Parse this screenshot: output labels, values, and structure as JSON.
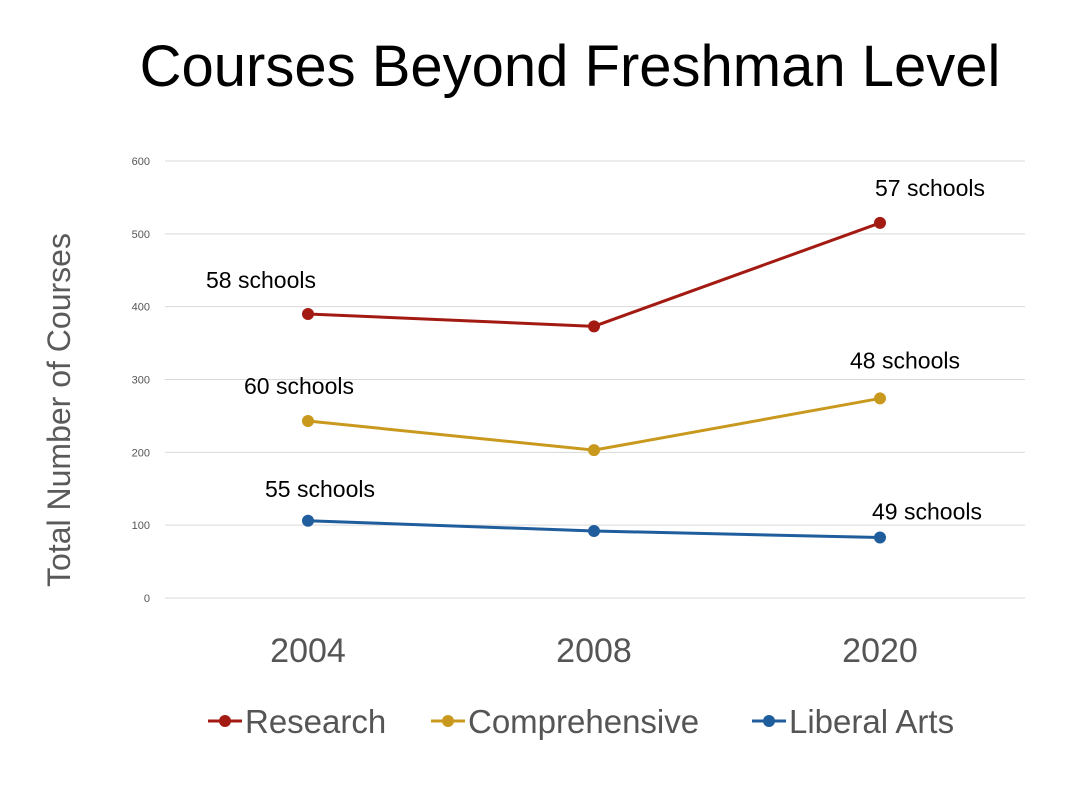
{
  "chart_data": {
    "type": "line",
    "title": "Courses Beyond Freshman Level",
    "xlabel": "",
    "ylabel": "Total Number of Courses",
    "categories": [
      "2004",
      "2008",
      "2020"
    ],
    "ylim": [
      0,
      600
    ],
    "yticks": [
      "0",
      "100",
      "200",
      "300",
      "400",
      "500",
      "600"
    ],
    "grid": true,
    "legend_position": "bottom",
    "series": [
      {
        "name": "Research",
        "color": "#a21a12",
        "values": [
          390,
          373,
          515
        ],
        "annotations": [
          "58 schools",
          "",
          "57 schools"
        ]
      },
      {
        "name": "Comprehensive",
        "color": "#c9991e",
        "values": [
          243,
          203,
          274
        ],
        "annotations": [
          "60 schools",
          "",
          "48 schools"
        ]
      },
      {
        "name": "Liberal Arts",
        "color": "#1f5d9c",
        "values": [
          106,
          92,
          83
        ],
        "annotations": [
          "55 schools",
          "",
          "49 schools"
        ]
      }
    ]
  }
}
